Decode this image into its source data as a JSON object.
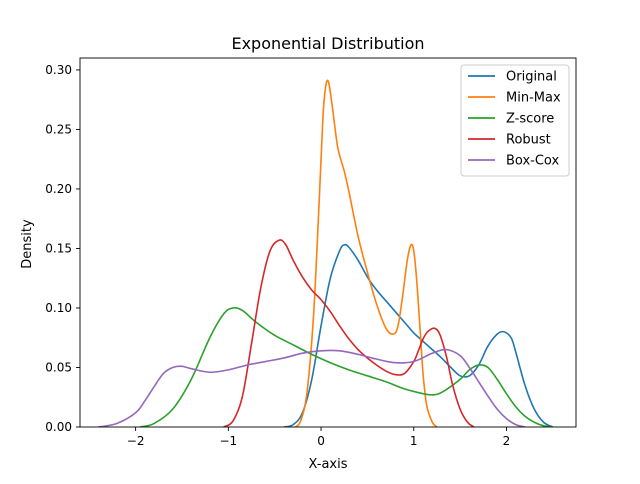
{
  "chart_data": {
    "type": "line",
    "title": "Exponential Distribution",
    "xlabel": "X-axis",
    "ylabel": "Density",
    "xlim": [
      -2.6,
      2.75
    ],
    "ylim": [
      0,
      0.31
    ],
    "xticks": [
      -2,
      -1,
      0,
      1,
      2
    ],
    "xtick_labels": [
      "−2",
      "−1",
      "0",
      "1",
      "2"
    ],
    "yticks": [
      0.0,
      0.05,
      0.1,
      0.15,
      0.2,
      0.25,
      0.3
    ],
    "ytick_labels": [
      "0.00",
      "0.05",
      "0.10",
      "0.15",
      "0.20",
      "0.25",
      "0.30"
    ],
    "grid": false,
    "legend_position": "top-right",
    "series": [
      {
        "name": "Original",
        "color": "#1f77b4",
        "x": [
          -0.4,
          -0.3,
          -0.2,
          -0.1,
          0.0,
          0.1,
          0.2,
          0.25,
          0.3,
          0.4,
          0.5,
          0.6,
          0.7,
          0.8,
          0.9,
          1.0,
          1.1,
          1.2,
          1.3,
          1.4,
          1.5,
          1.6,
          1.7,
          1.8,
          1.9,
          1.97,
          2.05,
          2.1,
          2.2,
          2.3,
          2.4,
          2.5
        ],
        "y": [
          0.0,
          0.002,
          0.012,
          0.04,
          0.085,
          0.125,
          0.148,
          0.153,
          0.151,
          0.14,
          0.126,
          0.115,
          0.106,
          0.097,
          0.088,
          0.079,
          0.072,
          0.065,
          0.058,
          0.05,
          0.043,
          0.043,
          0.052,
          0.068,
          0.078,
          0.08,
          0.075,
          0.063,
          0.035,
          0.015,
          0.004,
          0.0
        ]
      },
      {
        "name": "Min-Max",
        "color": "#ff7f0e",
        "x": [
          -0.28,
          -0.22,
          -0.15,
          -0.08,
          -0.02,
          0.02,
          0.05,
          0.08,
          0.12,
          0.18,
          0.25,
          0.3,
          0.4,
          0.5,
          0.6,
          0.7,
          0.78,
          0.83,
          0.88,
          0.93,
          0.97,
          1.0,
          1.03,
          1.07,
          1.1,
          1.14,
          1.2,
          1.25
        ],
        "y": [
          0.0,
          0.005,
          0.03,
          0.095,
          0.19,
          0.26,
          0.286,
          0.29,
          0.27,
          0.235,
          0.215,
          0.198,
          0.16,
          0.13,
          0.103,
          0.083,
          0.078,
          0.085,
          0.11,
          0.14,
          0.153,
          0.148,
          0.125,
          0.08,
          0.045,
          0.018,
          0.004,
          0.0
        ]
      },
      {
        "name": "Z-score",
        "color": "#2ca02c",
        "x": [
          -1.95,
          -1.8,
          -1.6,
          -1.4,
          -1.2,
          -1.05,
          -0.95,
          -0.85,
          -0.7,
          -0.5,
          -0.3,
          -0.1,
          0.1,
          0.3,
          0.5,
          0.7,
          0.9,
          1.1,
          1.2,
          1.3,
          1.5,
          1.6,
          1.7,
          1.8,
          1.9,
          2.0,
          2.1,
          2.2,
          2.3,
          2.4,
          2.5
        ],
        "y": [
          0.0,
          0.003,
          0.015,
          0.04,
          0.075,
          0.095,
          0.1,
          0.098,
          0.088,
          0.077,
          0.069,
          0.061,
          0.054,
          0.048,
          0.043,
          0.038,
          0.032,
          0.028,
          0.027,
          0.029,
          0.04,
          0.048,
          0.052,
          0.05,
          0.04,
          0.028,
          0.017,
          0.009,
          0.004,
          0.001,
          0.0
        ]
      },
      {
        "name": "Robust",
        "color": "#d62728",
        "x": [
          -1.05,
          -0.95,
          -0.85,
          -0.75,
          -0.65,
          -0.55,
          -0.45,
          -0.38,
          -0.3,
          -0.2,
          -0.1,
          0.0,
          0.1,
          0.2,
          0.3,
          0.4,
          0.5,
          0.6,
          0.7,
          0.8,
          0.9,
          1.0,
          1.05,
          1.1,
          1.15,
          1.22,
          1.28,
          1.35,
          1.42,
          1.5,
          1.58,
          1.65
        ],
        "y": [
          0.0,
          0.005,
          0.025,
          0.07,
          0.117,
          0.148,
          0.157,
          0.153,
          0.14,
          0.126,
          0.115,
          0.107,
          0.097,
          0.085,
          0.074,
          0.065,
          0.058,
          0.052,
          0.047,
          0.044,
          0.045,
          0.055,
          0.064,
          0.074,
          0.08,
          0.083,
          0.078,
          0.06,
          0.035,
          0.015,
          0.004,
          0.0
        ]
      },
      {
        "name": "Box-Cox",
        "color": "#9467bd",
        "x": [
          -2.4,
          -2.2,
          -2.0,
          -1.9,
          -1.8,
          -1.7,
          -1.6,
          -1.5,
          -1.4,
          -1.2,
          -1.0,
          -0.8,
          -0.6,
          -0.4,
          -0.2,
          0.0,
          0.2,
          0.4,
          0.6,
          0.8,
          1.0,
          1.2,
          1.35,
          1.5,
          1.6,
          1.7,
          1.8,
          1.9,
          2.0,
          2.1,
          2.2
        ],
        "y": [
          0.0,
          0.003,
          0.012,
          0.022,
          0.034,
          0.045,
          0.05,
          0.051,
          0.049,
          0.046,
          0.048,
          0.052,
          0.055,
          0.058,
          0.062,
          0.064,
          0.064,
          0.061,
          0.057,
          0.054,
          0.055,
          0.062,
          0.065,
          0.06,
          0.05,
          0.038,
          0.026,
          0.015,
          0.007,
          0.002,
          0.0
        ]
      }
    ]
  }
}
